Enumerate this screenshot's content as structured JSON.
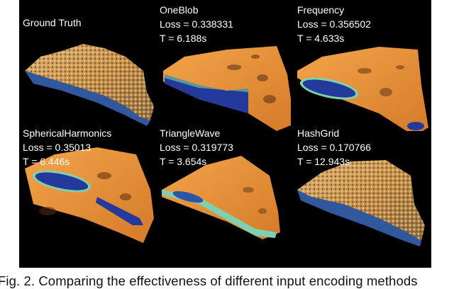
{
  "figure": {
    "panels": [
      {
        "name": "Ground Truth",
        "loss": "",
        "time": "",
        "style": "rough"
      },
      {
        "name": "OneBlob",
        "loss": "Loss = 0.338331",
        "time": "T = 6.188s",
        "style": "smooth"
      },
      {
        "name": "Frequency",
        "loss": "Loss = 0.356502",
        "time": "T = 4.633s",
        "style": "smooth"
      },
      {
        "name": "SphericalHarmonics",
        "loss": "Loss = 0.35013",
        "time": "T = 6.446s",
        "style": "smooth"
      },
      {
        "name": "TriangleWave",
        "loss": "Loss = 0.319773",
        "time": "T = 3.654s",
        "style": "smooth"
      },
      {
        "name": "HashGrid",
        "loss": "Loss = 0.170766",
        "time": "T = 12.943s",
        "style": "rough"
      }
    ],
    "colors": {
      "background": "#000000",
      "terrain": "#e8953a",
      "water": "#2a3f9a",
      "shore": "#7fd0b0"
    }
  },
  "caption": "Fig. 2. Comparing the effectiveness of different input encoding methods"
}
